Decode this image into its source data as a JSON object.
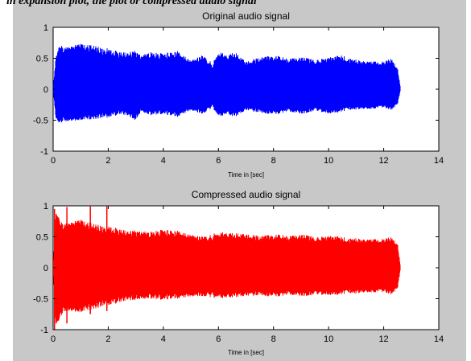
{
  "caption_fragment": "in expansion plot, the plot or compressed audio signal",
  "chart_data": [
    {
      "type": "line",
      "title": "Original audio signal",
      "xlabel": "Time in [sec]",
      "ylabel": "",
      "xlim": [
        0,
        14
      ],
      "ylim": [
        -1,
        1
      ],
      "xticks": [
        0,
        2,
        4,
        6,
        8,
        10,
        12,
        14
      ],
      "yticks": [
        -1,
        -0.5,
        0,
        0.5,
        1
      ],
      "color": "#0000ff",
      "envelope": {
        "t": [
          0,
          0.1,
          0.25,
          0.5,
          1.0,
          1.5,
          2.0,
          2.5,
          3.0,
          3.2,
          3.5,
          4.0,
          4.5,
          5.0,
          5.4,
          5.8,
          6.0,
          6.3,
          6.6,
          7.0,
          7.5,
          8.0,
          8.5,
          9.0,
          9.5,
          10.0,
          10.5,
          11.0,
          11.5,
          12.0,
          12.3,
          12.5,
          12.6
        ],
        "upper": [
          0,
          0.55,
          0.72,
          0.68,
          0.74,
          0.7,
          0.66,
          0.6,
          0.62,
          0.55,
          0.6,
          0.58,
          0.62,
          0.48,
          0.55,
          0.42,
          0.62,
          0.55,
          0.6,
          0.45,
          0.52,
          0.56,
          0.5,
          0.52,
          0.48,
          0.52,
          0.55,
          0.48,
          0.45,
          0.46,
          0.5,
          0.35,
          0.05
        ],
        "lower": [
          0,
          -0.5,
          -0.55,
          -0.52,
          -0.5,
          -0.48,
          -0.46,
          -0.4,
          -0.5,
          -0.36,
          -0.42,
          -0.4,
          -0.45,
          -0.35,
          -0.4,
          -0.3,
          -0.46,
          -0.4,
          -0.45,
          -0.34,
          -0.38,
          -0.42,
          -0.36,
          -0.4,
          -0.35,
          -0.4,
          -0.36,
          -0.33,
          -0.32,
          -0.3,
          -0.34,
          -0.25,
          -0.03
        ]
      }
    },
    {
      "type": "line",
      "title": "Compressed audio signal",
      "xlabel": "Time in [sec]",
      "ylabel": "",
      "xlim": [
        0,
        14
      ],
      "ylim": [
        -1,
        1
      ],
      "xticks": [
        0,
        2,
        4,
        6,
        8,
        10,
        12,
        14
      ],
      "yticks": [
        -1,
        -0.5,
        0,
        0.5,
        1
      ],
      "color": "#ff0000",
      "envelope": {
        "t": [
          0,
          0.1,
          0.25,
          0.5,
          1.0,
          1.5,
          2.0,
          2.5,
          3.0,
          3.5,
          4.0,
          4.5,
          5.0,
          5.5,
          6.0,
          6.5,
          7.0,
          7.5,
          8.0,
          8.5,
          9.0,
          9.5,
          10.0,
          10.5,
          11.0,
          11.5,
          12.0,
          12.3,
          12.5,
          12.6
        ],
        "upper": [
          0,
          0.95,
          0.75,
          0.72,
          0.78,
          0.7,
          0.68,
          0.62,
          0.6,
          0.58,
          0.62,
          0.6,
          0.55,
          0.5,
          0.58,
          0.56,
          0.55,
          0.52,
          0.55,
          0.52,
          0.54,
          0.5,
          0.52,
          0.5,
          0.48,
          0.46,
          0.48,
          0.5,
          0.4,
          0.05
        ],
        "lower": [
          0,
          -0.98,
          -0.8,
          -0.7,
          -0.72,
          -0.66,
          -0.62,
          -0.55,
          -0.52,
          -0.5,
          -0.52,
          -0.5,
          -0.48,
          -0.46,
          -0.5,
          -0.48,
          -0.46,
          -0.45,
          -0.48,
          -0.44,
          -0.46,
          -0.44,
          -0.45,
          -0.43,
          -0.42,
          -0.4,
          -0.4,
          -0.44,
          -0.35,
          -0.04
        ]
      },
      "spikes": [
        {
          "t": 0.05,
          "top": 0.95,
          "bottom": -1.0
        },
        {
          "t": 0.5,
          "top": 0.98,
          "bottom": -0.9
        },
        {
          "t": 1.35,
          "top": 0.99,
          "bottom": -0.75
        },
        {
          "t": 1.95,
          "top": 0.99,
          "bottom": -0.7
        }
      ]
    }
  ]
}
